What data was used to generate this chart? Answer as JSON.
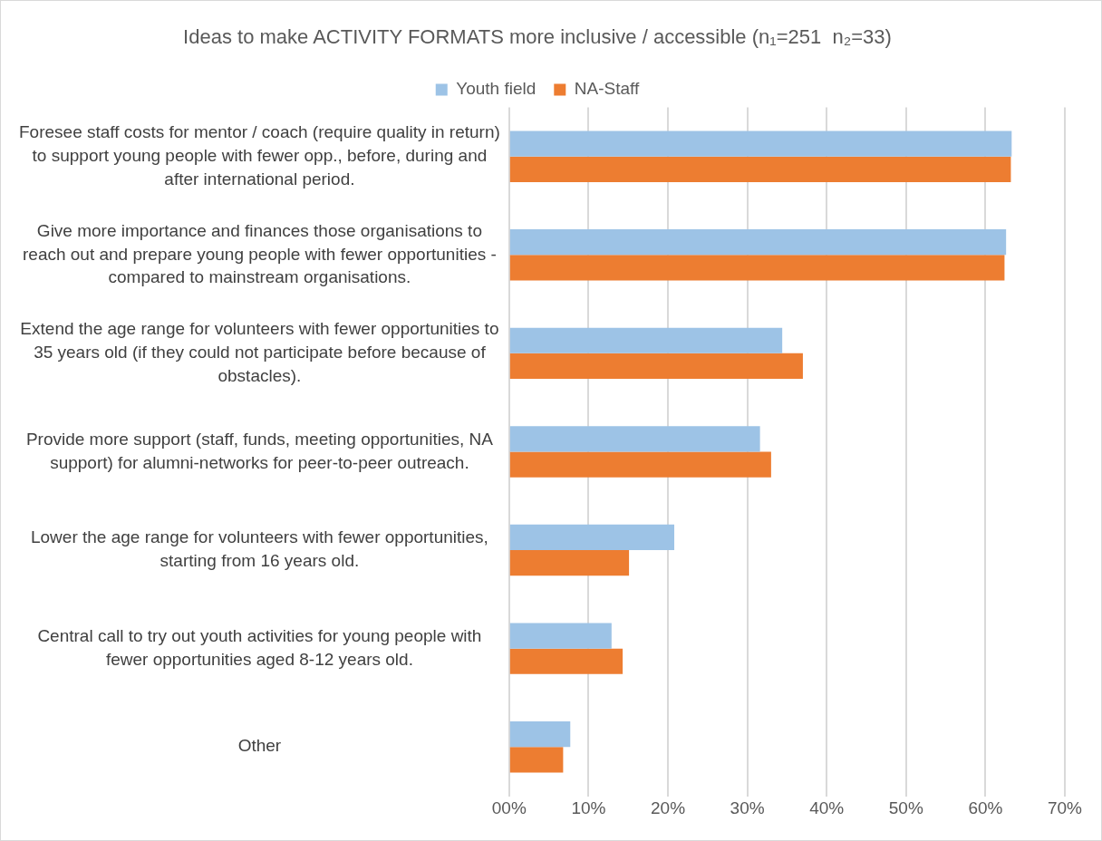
{
  "chart_data": {
    "type": "bar",
    "orientation": "horizontal",
    "title": "Ideas to make ACTIVITY FORMATS more inclusive / accessible (n₁=251  n₂=33)",
    "categories": [
      "Foresee staff costs for mentor / coach (require quality in return) to support young people with fewer opp., before, during and after international period.",
      "Give more importance and finances those organisations to reach out and prepare young people with fewer opportunities - compared to mainstream organisations.",
      "Extend the age range for volunteers with fewer opportunities to 35 years old (if they could not participate before because of obstacles).",
      "Provide more support (staff, funds, meeting opportunities, NA support) for alumni-networks for peer-to-peer outreach.",
      "Lower the age range for volunteers with fewer opportunities, starting from 16 years old.",
      "Central call to try out youth activities for young people with fewer opportunities aged 8-12 years old.",
      "Other"
    ],
    "series": [
      {
        "name": "Youth field",
        "color": "#9dc3e6",
        "values": [
          63.3,
          62.6,
          34.4,
          31.6,
          20.8,
          12.9,
          7.7
        ]
      },
      {
        "name": "NA-Staff",
        "color": "#ed7d31",
        "values": [
          63.2,
          62.4,
          37.0,
          33.0,
          15.1,
          14.3,
          6.8
        ]
      }
    ],
    "xlim": [
      0,
      70
    ],
    "xticks": [
      {
        "value": 0,
        "label": "00%"
      },
      {
        "value": 10,
        "label": "10%"
      },
      {
        "value": 20,
        "label": "20%"
      },
      {
        "value": 30,
        "label": "30%"
      },
      {
        "value": 40,
        "label": "40%"
      },
      {
        "value": 50,
        "label": "50%"
      },
      {
        "value": 60,
        "label": "60%"
      },
      {
        "value": 70,
        "label": "70%"
      }
    ],
    "grid": "x",
    "legend": "top"
  }
}
